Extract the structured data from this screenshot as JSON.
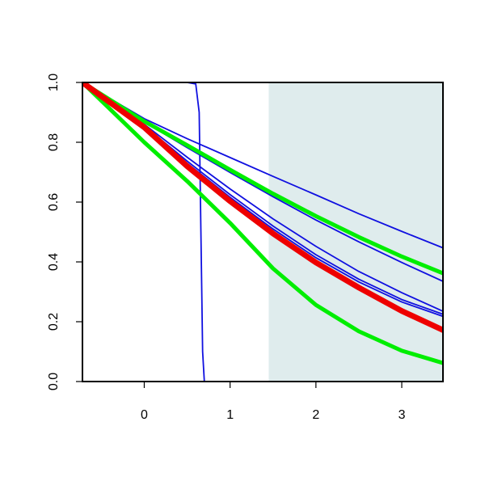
{
  "chart_data": {
    "type": "line",
    "title": "",
    "xlabel": "",
    "ylabel": "",
    "xlim": [
      -0.72,
      3.48
    ],
    "ylim": [
      0,
      1
    ],
    "x_ticks": [
      0,
      1,
      2,
      3
    ],
    "x_tick_labels": [
      "0",
      "1",
      "2",
      "3"
    ],
    "y_ticks": [
      0,
      0.2,
      0.4,
      0.6,
      0.8,
      1.0
    ],
    "y_tick_labels": [
      "0.0",
      "0.2",
      "0.4",
      "0.6",
      "0.8",
      "1.0"
    ],
    "grid": false,
    "legend": "none",
    "shaded_region": {
      "x_from": 1.45,
      "x_to": 3.48,
      "color": "#dfeced"
    },
    "colors": {
      "blue": "#1010e0",
      "green": "#00ee00",
      "red": "#ee0000",
      "axis": "#000000"
    },
    "series": [
      {
        "color": "#1010e0",
        "width": 1.8,
        "x": [
          -0.72,
          0,
          0.5,
          1,
          1.5,
          2,
          2.5,
          3,
          3.48
        ],
        "y": [
          1.0,
          0.879,
          0.812,
          0.749,
          0.686,
          0.624,
          0.561,
          0.502,
          0.447
        ]
      },
      {
        "color": "#1010e0",
        "width": 1.8,
        "x": [
          -0.72,
          0,
          0.5,
          1,
          1.5,
          2,
          2.5,
          3,
          3.48
        ],
        "y": [
          1.0,
          0.868,
          0.782,
          0.699,
          0.618,
          0.54,
          0.467,
          0.398,
          0.335
        ]
      },
      {
        "color": "#1010e0",
        "width": 1.8,
        "x": [
          -0.72,
          0,
          0.5,
          1,
          1.5,
          2,
          2.5,
          3,
          3.48
        ],
        "y": [
          1.0,
          0.86,
          0.75,
          0.644,
          0.544,
          0.452,
          0.368,
          0.297,
          0.235
        ]
      },
      {
        "color": "#1010e0",
        "width": 1.8,
        "x": [
          -0.72,
          0,
          0.5,
          1,
          1.5,
          2,
          2.5,
          3,
          3.48
        ],
        "y": [
          1.0,
          0.855,
          0.737,
          0.625,
          0.52,
          0.424,
          0.342,
          0.274,
          0.225
        ]
      },
      {
        "color": "#1010e0",
        "width": 1.8,
        "x": [
          -0.72,
          0,
          0.5,
          1,
          1.5,
          2,
          2.5,
          3,
          3.48
        ],
        "y": [
          1.0,
          0.853,
          0.73,
          0.616,
          0.51,
          0.414,
          0.333,
          0.266,
          0.218
        ]
      },
      {
        "color": "#1010e0",
        "width": 1.8,
        "x": [
          -0.72,
          0,
          0.5,
          0.6,
          0.64,
          0.66,
          0.68,
          0.7,
          1,
          2,
          3,
          3.48
        ],
        "y": [
          1.0,
          1.0,
          1.0,
          0.995,
          0.9,
          0.5,
          0.1,
          0.0,
          0.0,
          0.0,
          0.0,
          0.0
        ]
      },
      {
        "color": "#00ee00",
        "width": 5,
        "x": [
          -0.72,
          0,
          0.5,
          1,
          1.5,
          2,
          2.5,
          3,
          3.48
        ],
        "y": [
          1.0,
          0.87,
          0.79,
          0.708,
          0.628,
          0.553,
          0.483,
          0.418,
          0.362
        ]
      },
      {
        "color": "#00ee00",
        "width": 5,
        "x": [
          -0.72,
          0,
          0.5,
          1,
          1.5,
          2,
          2.5,
          3,
          3.48
        ],
        "y": [
          1.0,
          0.8,
          0.67,
          0.53,
          0.378,
          0.256,
          0.168,
          0.103,
          0.062
        ]
      },
      {
        "color": "#ee0000",
        "width": 7,
        "x": [
          -0.72,
          0,
          0.5,
          1,
          1.5,
          2,
          2.5,
          3,
          3.48
        ],
        "y": [
          1.0,
          0.85,
          0.72,
          0.603,
          0.495,
          0.398,
          0.314,
          0.236,
          0.172
        ]
      }
    ]
  }
}
